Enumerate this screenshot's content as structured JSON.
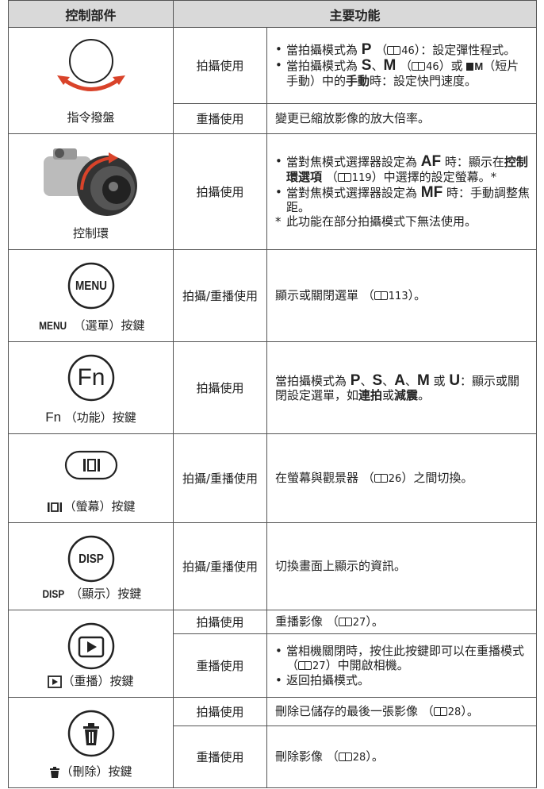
{
  "table": {
    "headers": [
      "控制部件",
      "主要功能"
    ],
    "rows": [
      {
        "control": [
          "指令撥盤"
        ],
        "functions": [
          {
            "usage": "拍攝使用",
            "items": [
              {
                "marker": "•",
                "segments": [
                  "當拍攝模式為 ",
                  {
                    "text": "P",
                    "style": "mode"
                  },
                  " （",
                  {
                    "text": "46",
                    "style": "ref"
                  },
                  "）：設定彈性程式。"
                ]
              },
              {
                "marker": "•",
                "segments": [
                  "當拍攝模式為 ",
                  {
                    "text": "S",
                    "style": "mode"
                  },
                  "、",
                  {
                    "text": "M",
                    "style": "mode"
                  },
                  " （",
                  {
                    "text": "46",
                    "style": "ref"
                  },
                  "）或 ",
                  {
                    "text": "M",
                    "style": "movie"
                  },
                  "（短片手動）中的",
                  {
                    "text": "手動",
                    "style": "bold"
                  },
                  "時：設定快門速度。"
                ]
              }
            ]
          },
          {
            "usage": "重播使用",
            "items": [
              {
                "segments": [
                  "變更已縮放影像的放大倍率。"
                ]
              }
            ]
          }
        ]
      },
      {
        "control": [
          "控制環"
        ],
        "functions": [
          {
            "usage": "拍攝使用",
            "items": [
              {
                "marker": "•",
                "segments": [
                  "當對焦模式選擇器設定為 ",
                  {
                    "text": "AF",
                    "style": "mode"
                  },
                  " 時：顯示在",
                  {
                    "text": "控制環選項",
                    "style": "bold"
                  },
                  " （",
                  {
                    "text": "119",
                    "style": "ref"
                  },
                  "）中選擇的設定螢幕。*"
                ]
              },
              {
                "marker": "•",
                "segments": [
                  "當對焦模式選擇器設定為 ",
                  {
                    "text": "MF",
                    "style": "mode"
                  },
                  " 時：手動調整焦距。"
                ]
              },
              {
                "marker": "*",
                "segments": [
                  "此功能在部分拍攝模式下無法使用。"
                ]
              }
            ]
          }
        ]
      },
      {
        "button_text": "MENU",
        "control": [
          {
            "text": "MENU",
            "style": "key"
          },
          " （選單）按鍵"
        ],
        "functions": [
          {
            "usage": "拍攝/重播使用",
            "items": [
              {
                "segments": [
                  "顯示或關閉選單 （",
                  {
                    "text": "113",
                    "style": "ref"
                  },
                  "）。"
                ]
              }
            ]
          }
        ]
      },
      {
        "button_text": "Fn",
        "control": [
          {
            "text": "Fn",
            "style": "key-light"
          },
          " （功能）按鍵"
        ],
        "functions": [
          {
            "usage": "拍攝使用",
            "items": [
              {
                "segments": [
                  "當拍攝模式為 ",
                  {
                    "text": "P",
                    "style": "mode"
                  },
                  "、",
                  {
                    "text": "S",
                    "style": "mode"
                  },
                  "、",
                  {
                    "text": "A",
                    "style": "mode"
                  },
                  "、",
                  {
                    "text": "M",
                    "style": "mode"
                  },
                  " 或 ",
                  {
                    "text": "U",
                    "style": "mode"
                  },
                  "：顯示或關閉設定選單，如",
                  {
                    "text": "連拍",
                    "style": "bold"
                  },
                  "或",
                  {
                    "text": "減震",
                    "style": "bold"
                  },
                  "。"
                ]
              }
            ]
          }
        ]
      },
      {
        "control": [
          "（螢幕）按鍵"
        ],
        "functions": [
          {
            "usage": "拍攝/重播使用",
            "items": [
              {
                "segments": [
                  "在螢幕與觀景器 （",
                  {
                    "text": "26",
                    "style": "ref"
                  },
                  "）之間切換。"
                ]
              }
            ]
          }
        ]
      },
      {
        "button_text": "DISP",
        "control": [
          {
            "text": "DISP",
            "style": "key"
          },
          " （顯示）按鍵"
        ],
        "functions": [
          {
            "usage": "拍攝/重播使用",
            "items": [
              {
                "segments": [
                  "切換畫面上顯示的資訊。"
                ]
              }
            ]
          }
        ]
      },
      {
        "control": [
          "（重播）按鍵"
        ],
        "functions": [
          {
            "usage": "拍攝使用",
            "items": [
              {
                "segments": [
                  "重播影像 （",
                  {
                    "text": "27",
                    "style": "ref"
                  },
                  "）。"
                ]
              }
            ]
          },
          {
            "usage": "重播使用",
            "items": [
              {
                "marker": "•",
                "segments": [
                  "當相機關閉時，按住此按鍵即可以在重播模式 （",
                  {
                    "text": "27",
                    "style": "ref"
                  },
                  "）中開啟相機。"
                ]
              },
              {
                "marker": "•",
                "segments": [
                  "返回拍攝模式。"
                ]
              }
            ]
          }
        ]
      },
      {
        "control": [
          "（刪除）按鍵"
        ],
        "functions": [
          {
            "usage": "拍攝使用",
            "items": [
              {
                "segments": [
                  "刪除已儲存的最後一張影像 （",
                  {
                    "text": "28",
                    "style": "ref"
                  },
                  "）。"
                ]
              }
            ]
          },
          {
            "usage": "重播使用",
            "items": [
              {
                "segments": [
                  "刪除影像 （",
                  {
                    "text": "28",
                    "style": "ref"
                  },
                  "）。"
                ]
              }
            ]
          }
        ]
      }
    ]
  }
}
